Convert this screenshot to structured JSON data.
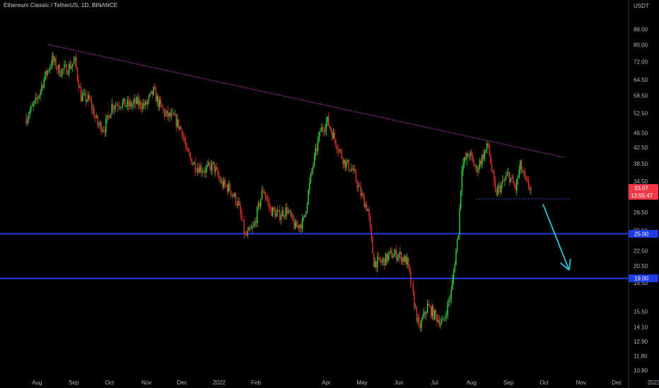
{
  "header": {
    "title": "Ethereum Classic / TetherUS, 1D, BINANCE"
  },
  "colors": {
    "up": "#4caf50",
    "up_bright": "#2fe03a",
    "down": "#e5322b",
    "trendline": "#d633d6",
    "support": "#1f3be6",
    "support_dotted": "#3b5bff",
    "arrow": "#29b6c8",
    "price_tag": "#f23645",
    "axis_text": "#b2b5be",
    "background": "#000000"
  },
  "chart_data": {
    "type": "candlestick",
    "title": "Ethereum Classic / TetherUS, 1D, BINANCE",
    "y_unit": "USDT",
    "y_scale": "log",
    "ylim": [
      10.2,
      100
    ],
    "y_ticks": [
      "88.00",
      "80.00",
      "72.00",
      "64.50",
      "58.50",
      "52.50",
      "46.50",
      "42.50",
      "38.50",
      "34.50",
      "28.50",
      "25.50",
      "22.50",
      "20.50",
      "18.50",
      "15.50",
      "14.10",
      "12.90",
      "11.80",
      "10.80"
    ],
    "x_ticks": [
      "Aug",
      "Sep",
      "Oct",
      "Nov",
      "Dec",
      "2022",
      "Feb",
      "Apr",
      "May",
      "Jun",
      "Jul",
      "Aug",
      "Sep",
      "Oct",
      "Nov",
      "Dec",
      "2023"
    ],
    "price_path": [
      [
        "2021-07-23",
        51
      ],
      [
        "2021-08-01",
        57
      ],
      [
        "2021-08-08",
        66
      ],
      [
        "2021-08-14",
        73
      ],
      [
        "2021-08-20",
        68
      ],
      [
        "2021-08-26",
        69
      ],
      [
        "2021-09-02",
        72
      ],
      [
        "2021-09-07",
        58
      ],
      [
        "2021-09-14",
        57
      ],
      [
        "2021-09-21",
        49
      ],
      [
        "2021-09-27",
        48
      ],
      [
        "2021-10-03",
        55
      ],
      [
        "2021-10-10",
        56
      ],
      [
        "2021-10-17",
        55
      ],
      [
        "2021-10-24",
        56
      ],
      [
        "2021-10-31",
        55
      ],
      [
        "2021-11-07",
        60
      ],
      [
        "2021-11-11",
        56
      ],
      [
        "2021-11-17",
        52
      ],
      [
        "2021-11-24",
        51
      ],
      [
        "2021-12-01",
        47
      ],
      [
        "2021-12-05",
        41
      ],
      [
        "2021-12-12",
        38
      ],
      [
        "2021-12-20",
        37
      ],
      [
        "2021-12-27",
        38
      ],
      [
        "2022-01-03",
        34
      ],
      [
        "2022-01-10",
        33
      ],
      [
        "2022-01-17",
        30
      ],
      [
        "2022-01-23",
        24.5
      ],
      [
        "2022-01-30",
        26
      ],
      [
        "2022-02-07",
        33
      ],
      [
        "2022-02-13",
        29
      ],
      [
        "2022-02-20",
        28
      ],
      [
        "2022-02-27",
        29
      ],
      [
        "2022-03-06",
        26
      ],
      [
        "2022-03-13",
        27
      ],
      [
        "2022-03-20",
        37
      ],
      [
        "2022-03-27",
        47
      ],
      [
        "2022-04-02",
        50
      ],
      [
        "2022-04-09",
        44
      ],
      [
        "2022-04-16",
        39
      ],
      [
        "2022-04-23",
        37
      ],
      [
        "2022-04-30",
        32
      ],
      [
        "2022-05-06",
        29
      ],
      [
        "2022-05-11",
        21
      ],
      [
        "2022-05-18",
        21
      ],
      [
        "2022-05-25",
        22
      ],
      [
        "2022-06-01",
        22
      ],
      [
        "2022-06-08",
        21
      ],
      [
        "2022-06-13",
        17
      ],
      [
        "2022-06-18",
        13.9
      ],
      [
        "2022-06-25",
        16
      ],
      [
        "2022-07-02",
        15
      ],
      [
        "2022-07-08",
        14.4
      ],
      [
        "2022-07-15",
        17.5
      ],
      [
        "2022-07-21",
        25.5
      ],
      [
        "2022-07-24",
        38
      ],
      [
        "2022-07-30",
        41
      ],
      [
        "2022-08-05",
        37
      ],
      [
        "2022-08-10",
        40
      ],
      [
        "2022-08-15",
        43
      ],
      [
        "2022-08-21",
        32
      ],
      [
        "2022-08-27",
        34
      ],
      [
        "2022-09-01",
        36
      ],
      [
        "2022-09-07",
        33
      ],
      [
        "2022-09-11",
        38
      ],
      [
        "2022-09-16",
        34
      ],
      [
        "2022-09-20",
        33.07
      ]
    ],
    "annotations": {
      "trendline": {
        "from": [
          "2021-08-11",
          80
        ],
        "to": [
          "2022-10-18",
          40
        ]
      },
      "support_dotted": {
        "from": [
          "2022-08-05",
          31
        ],
        "to": [
          "2022-10-22",
          31
        ]
      },
      "arrow": {
        "from": [
          "2022-09-30",
          30
        ],
        "to": [
          "2022-10-22",
          20
        ]
      },
      "support_lines": [
        25.0,
        19.0
      ]
    },
    "price_tags": [
      {
        "value": 33.07,
        "label": "33.07",
        "sub_label": "13:55:47"
      },
      {
        "value": 25.0,
        "label": "25.00"
      },
      {
        "value": 19.0,
        "label": "19.00"
      }
    ]
  }
}
